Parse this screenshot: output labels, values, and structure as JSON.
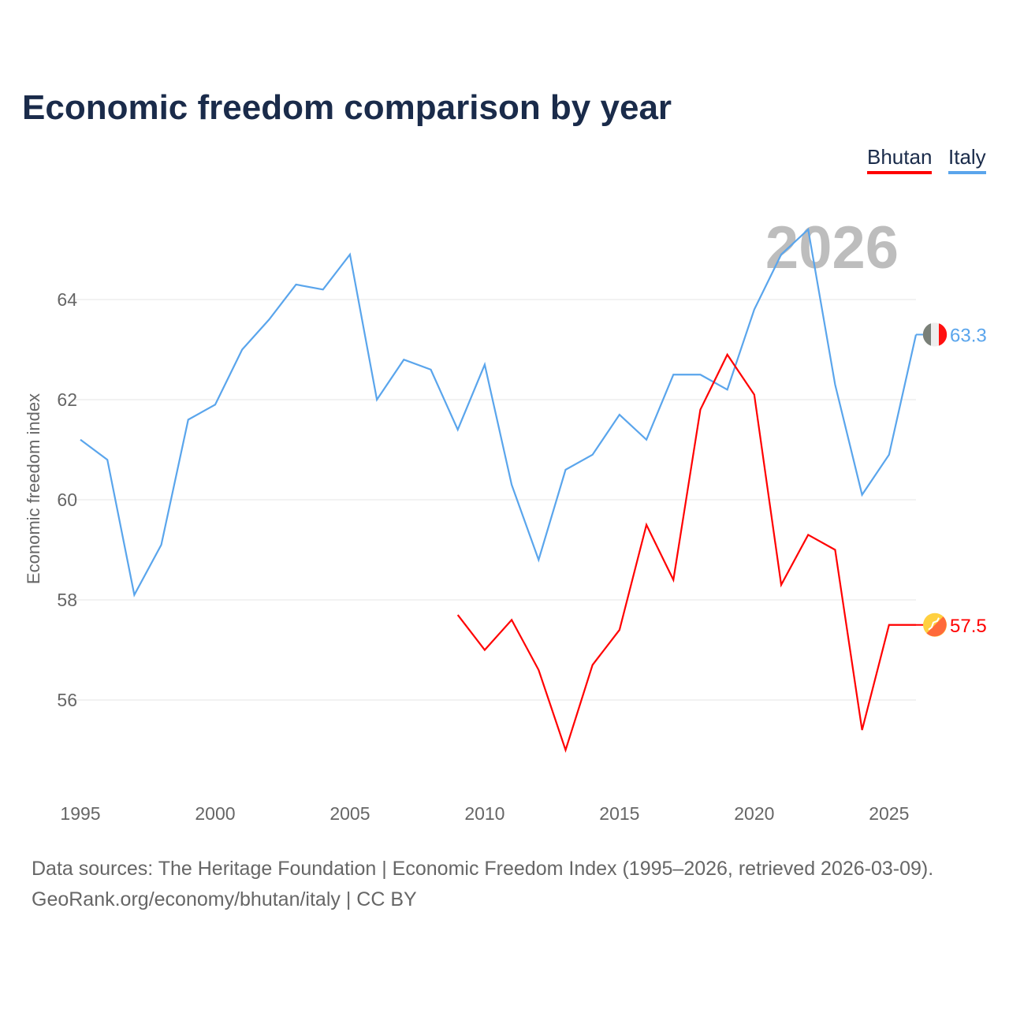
{
  "chart_data": {
    "type": "line",
    "title": "Economic freedom comparison by year",
    "ylabel": "Economic freedom index",
    "xlabel": "",
    "year_watermark": "2026",
    "xlim": [
      1995,
      2026
    ],
    "ylim": [
      54.2,
      66
    ],
    "xticks": [
      "1995",
      "2000",
      "2005",
      "2010",
      "2015",
      "2020",
      "2025"
    ],
    "yticks": [
      "56",
      "58",
      "60",
      "62",
      "64"
    ],
    "grid": true,
    "legend": "top-right",
    "series": [
      {
        "name": "Bhutan",
        "color": "#ff0000",
        "end_label": "57.5",
        "x": [
          2009,
          2010,
          2011,
          2012,
          2013,
          2014,
          2015,
          2016,
          2017,
          2018,
          2019,
          2020,
          2021,
          2022,
          2023,
          2024,
          2025,
          2026
        ],
        "values": [
          57.7,
          57.0,
          57.6,
          56.6,
          55.0,
          56.7,
          57.4,
          59.5,
          58.4,
          61.8,
          62.9,
          62.1,
          58.3,
          59.3,
          59.0,
          55.4,
          57.5,
          57.5
        ]
      },
      {
        "name": "Italy",
        "color": "#5aa5ec",
        "end_label": "63.3",
        "x": [
          1995,
          1996,
          1997,
          1998,
          1999,
          2000,
          2001,
          2002,
          2003,
          2004,
          2005,
          2006,
          2007,
          2008,
          2009,
          2010,
          2011,
          2012,
          2013,
          2014,
          2015,
          2016,
          2017,
          2018,
          2019,
          2020,
          2021,
          2022,
          2023,
          2024,
          2025,
          2026
        ],
        "values": [
          61.2,
          60.8,
          58.1,
          59.1,
          61.6,
          61.9,
          63.0,
          63.6,
          64.3,
          64.2,
          64.9,
          62.0,
          62.8,
          62.6,
          61.4,
          62.7,
          60.3,
          58.8,
          60.6,
          60.9,
          61.7,
          61.2,
          62.5,
          62.5,
          62.2,
          63.8,
          64.9,
          65.4,
          62.3,
          60.1,
          60.9,
          63.3
        ]
      }
    ]
  },
  "legend": {
    "bhutan": "Bhutan",
    "italy": "Italy"
  },
  "source": {
    "line1": "Data sources: The Heritage Foundation | Economic Freedom Index (1995–2026, retrieved 2026-03-09).",
    "line2": "GeoRank.org/economy/bhutan/italy | CC BY"
  }
}
